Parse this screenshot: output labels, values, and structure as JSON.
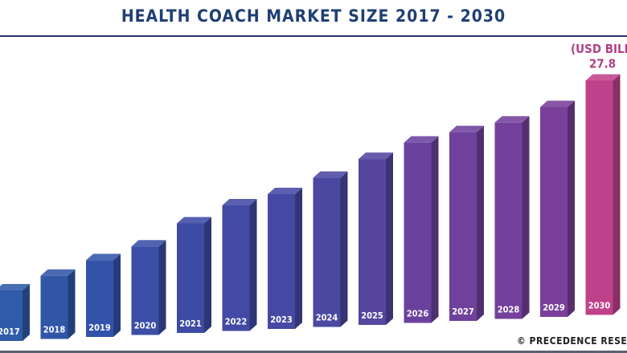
{
  "chart_data": {
    "type": "bar",
    "title": "HEALTH COACH MARKET SIZE 2017 - 2030",
    "unit_label": "(USD BILLION)",
    "categories": [
      "2017",
      "2018",
      "2019",
      "2020",
      "2021",
      "2022",
      "2023",
      "2024",
      "2025",
      "2026",
      "2027",
      "2028",
      "2029",
      "2030"
    ],
    "values": [
      6.0,
      7.5,
      9.1,
      10.5,
      13.0,
      14.9,
      16.0,
      17.7,
      19.7,
      21.4,
      22.4,
      23.3,
      24.9,
      27.8
    ],
    "data_labels": {
      "2030": "27.8"
    },
    "style": "3d-bars",
    "grid": false,
    "colors": [
      "#2f5ba8",
      "#3156a8",
      "#3353aa",
      "#3a4ea6",
      "#3e4ba5",
      "#424aa4",
      "#4649a3",
      "#4b48a2",
      "#5646a0",
      "#6a429e",
      "#6f419d",
      "#74409c",
      "#7a3f9b",
      "#c0418b"
    ]
  },
  "footer": "© PRECEDENCE RESEARCH"
}
